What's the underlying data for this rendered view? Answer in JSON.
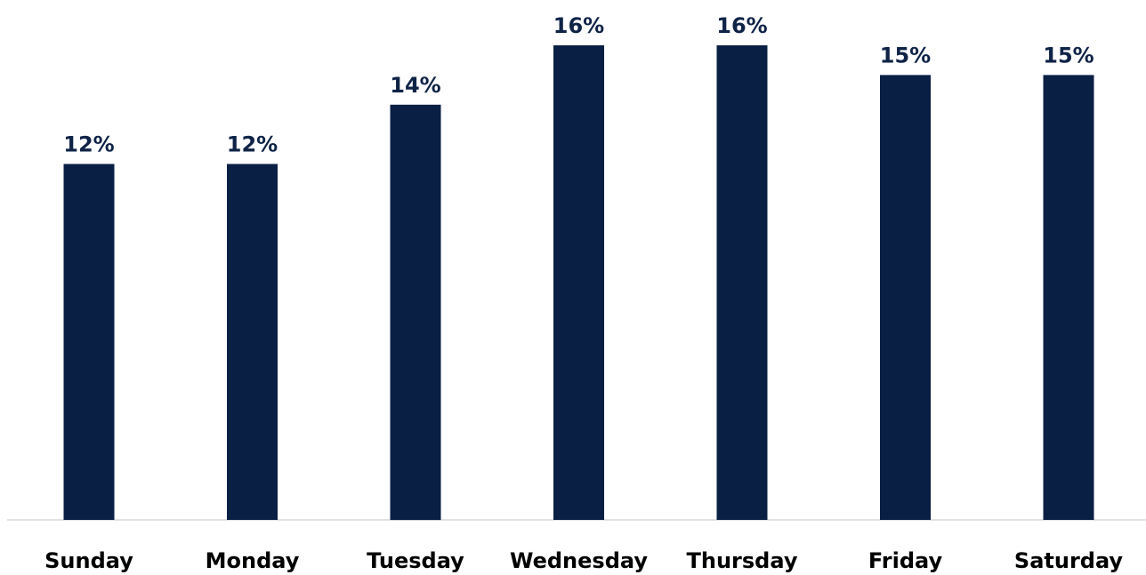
{
  "chart_data": {
    "type": "bar",
    "categories": [
      "Sunday",
      "Monday",
      "Tuesday",
      "Wednesday",
      "Thursday",
      "Friday",
      "Saturday"
    ],
    "values": [
      12,
      12,
      14,
      16,
      16,
      15,
      15
    ],
    "data_labels": [
      "12%",
      "12%",
      "14%",
      "16%",
      "16%",
      "15%",
      "15%"
    ],
    "title": "",
    "xlabel": "",
    "ylabel": "",
    "ylim": [
      0,
      16
    ],
    "grid": false,
    "legend": "none",
    "colors": {
      "bar": "#0a1f44",
      "label": "#0f2347",
      "axis": "#d9d9d9",
      "category_text": "#000000"
    }
  }
}
